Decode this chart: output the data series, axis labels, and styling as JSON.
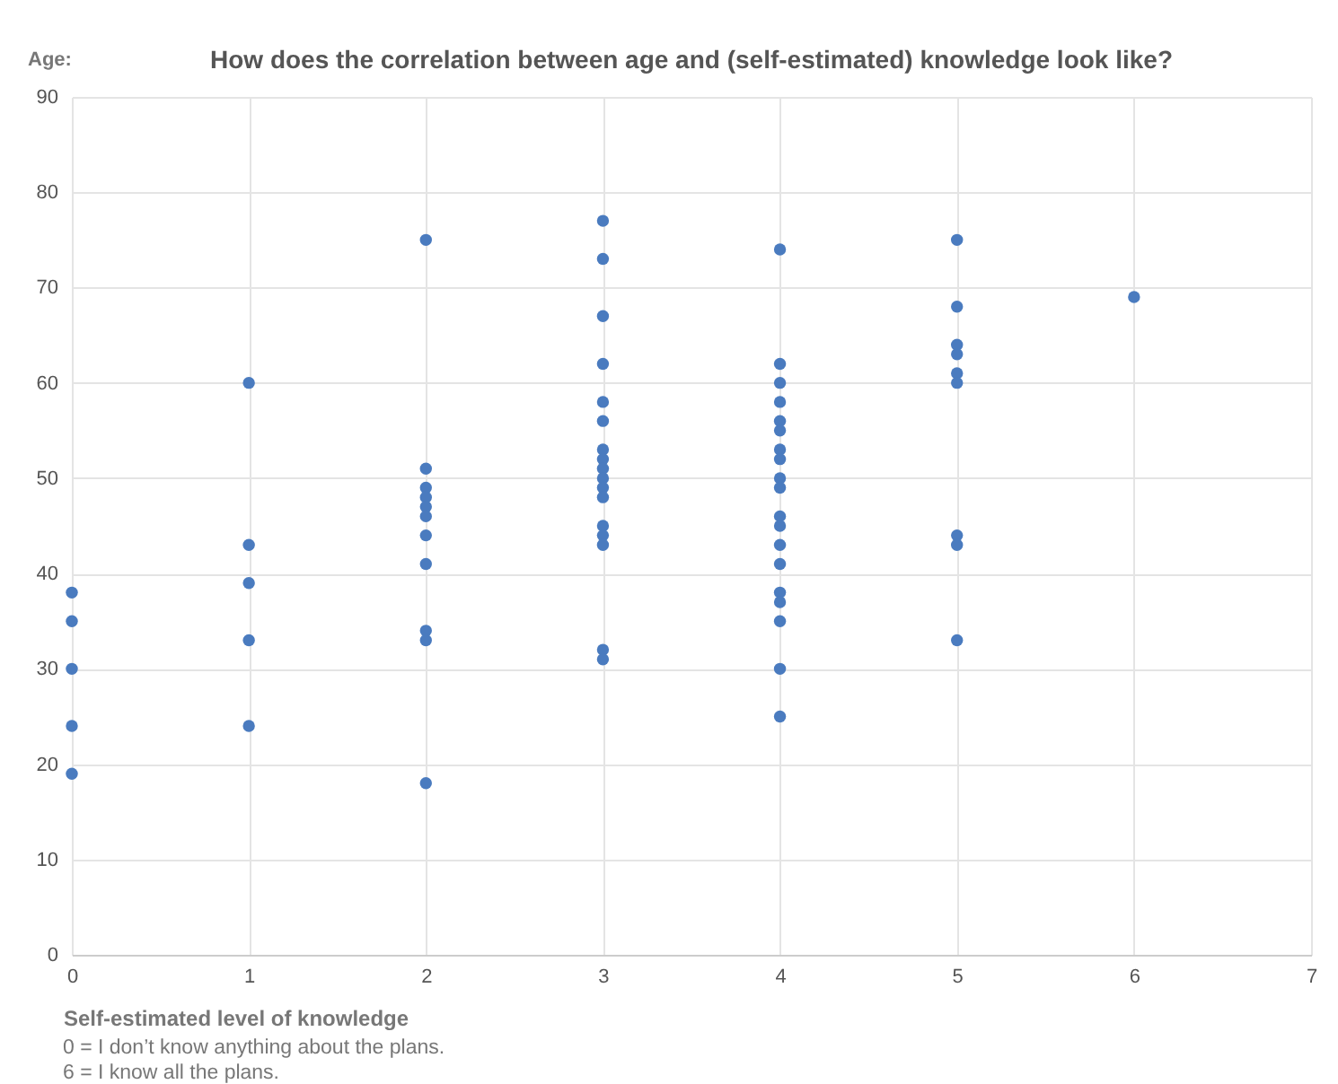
{
  "chart_data": {
    "type": "scatter",
    "title": "How does the correlation between age and (self-estimated) knowledge look like?",
    "ylabel": "Age:",
    "xlabel": "Self-estimated level of knowledge",
    "annotations": [
      "0 = I don’t know anything about the plans.",
      "6 = I know all the plans."
    ],
    "series": [
      {
        "color": "#4a7bbf",
        "x": [
          0,
          0,
          0,
          0,
          0,
          1,
          1,
          1,
          1,
          1,
          2,
          2,
          2,
          2,
          2,
          2,
          2,
          2,
          2,
          2,
          2,
          3,
          3,
          3,
          3,
          3,
          3,
          3,
          3,
          3,
          3,
          3,
          3,
          3,
          3,
          3,
          3,
          3,
          4,
          4,
          4,
          4,
          4,
          4,
          4,
          4,
          4,
          4,
          4,
          4,
          4,
          4,
          4,
          4,
          4,
          4,
          4,
          5,
          5,
          5,
          5,
          5,
          5,
          5,
          5,
          5,
          6
        ],
        "values": [
          38,
          35,
          30,
          24,
          19,
          60,
          43,
          39,
          33,
          24,
          75,
          51,
          49,
          48,
          47,
          46,
          44,
          41,
          34,
          33,
          18,
          77,
          73,
          67,
          62,
          58,
          56,
          53,
          52,
          51,
          50,
          49,
          48,
          45,
          44,
          43,
          32,
          31,
          74,
          62,
          60,
          58,
          56,
          55,
          53,
          52,
          50,
          49,
          46,
          45,
          43,
          41,
          38,
          37,
          35,
          30,
          25,
          75,
          68,
          64,
          63,
          61,
          60,
          44,
          43,
          33,
          69
        ]
      }
    ],
    "xlim": [
      0,
      7
    ],
    "xticks": [
      0,
      1,
      2,
      3,
      4,
      5,
      6,
      7
    ],
    "ylim": [
      0,
      90
    ],
    "yticks": [
      0,
      10,
      20,
      30,
      40,
      50,
      60,
      70,
      80,
      90
    ],
    "grid": true,
    "marker": "circle"
  }
}
